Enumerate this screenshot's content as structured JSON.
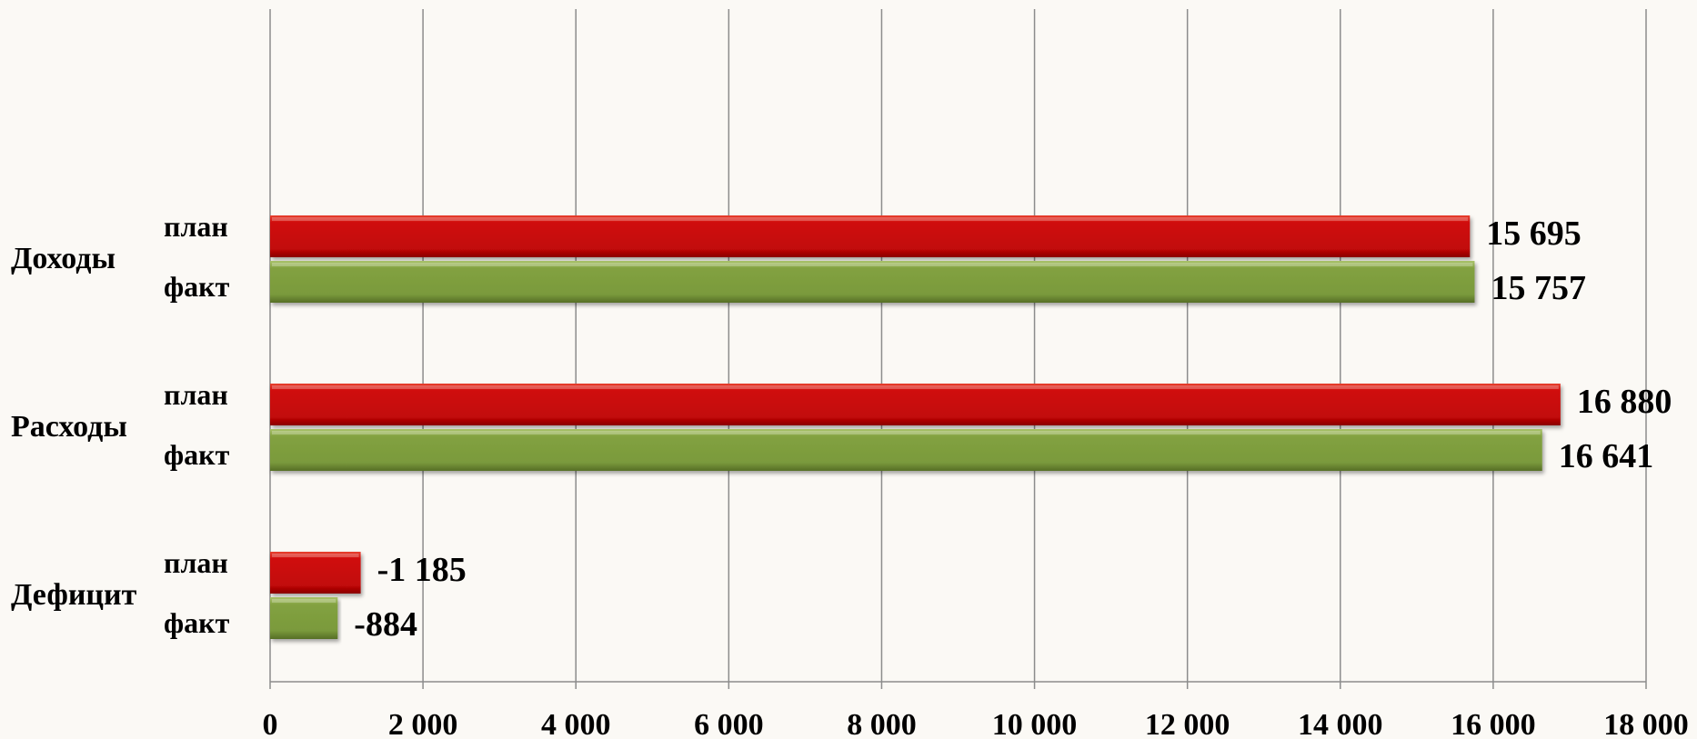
{
  "chart_data": {
    "type": "bar",
    "orientation": "horizontal",
    "categories": [
      "Доходы",
      "Расходы",
      "Дефицит"
    ],
    "series": [
      {
        "name": "план",
        "color": "#cc0a0a",
        "values": [
          15695,
          16880,
          1185
        ],
        "labels": [
          "15 695",
          "16 880",
          "-1 185"
        ]
      },
      {
        "name": "факт",
        "color": "#7a9a3c",
        "values": [
          15757,
          16641,
          884
        ],
        "labels": [
          "15 757",
          "16 641",
          "-884"
        ]
      }
    ],
    "xlim": [
      0,
      18000
    ],
    "x_ticks": [
      0,
      2000,
      4000,
      6000,
      8000,
      10000,
      12000,
      14000,
      16000,
      18000
    ],
    "x_tick_labels": [
      "0",
      "2 000",
      "4 000",
      "6 000",
      "8 000",
      "10 000",
      "12 000",
      "14 000",
      "16 000",
      "18 000"
    ],
    "grid": "vertical",
    "legend": "none",
    "title": "",
    "xlabel": "",
    "ylabel": ""
  }
}
